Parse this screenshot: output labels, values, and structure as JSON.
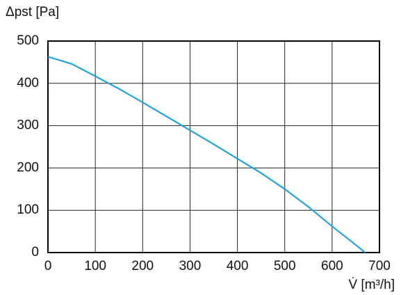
{
  "chart_data": {
    "type": "line",
    "y_label": "Δpst [Pa]",
    "x_label": "V̇ [m³/h]",
    "x": [
      0,
      50,
      100,
      150,
      200,
      250,
      300,
      350,
      400,
      450,
      500,
      550,
      600,
      650,
      670
    ],
    "series": [
      {
        "color": "#1fa3dc",
        "values": [
          463,
          446,
          417,
          387,
          355,
          322,
          289,
          256,
          222,
          188,
          150,
          108,
          62,
          18,
          0
        ]
      }
    ],
    "xlim": [
      0,
      700
    ],
    "xticks": [
      0,
      100,
      200,
      300,
      400,
      500,
      600,
      700
    ],
    "ylim": [
      0,
      500
    ],
    "yticks": [
      0,
      100,
      200,
      300,
      400,
      500
    ],
    "grid": true
  }
}
